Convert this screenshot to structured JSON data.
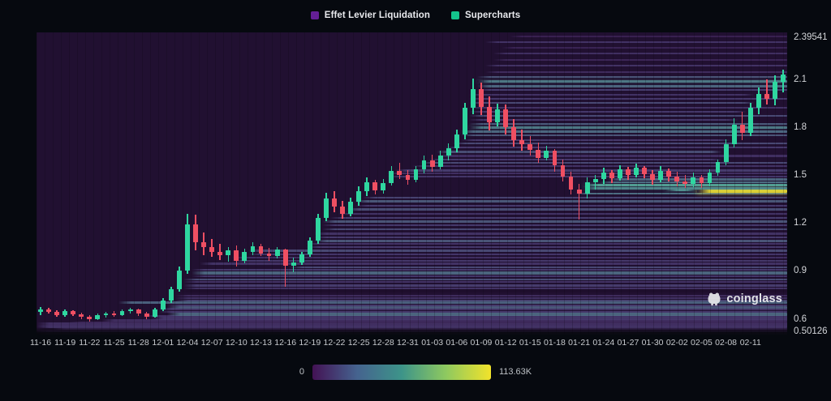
{
  "legend": {
    "items": [
      {
        "label": "Effet Levier Liquidation",
        "color": "#641f96"
      },
      {
        "label": "Supercharts",
        "color": "#14c58c"
      }
    ]
  },
  "watermark": {
    "label": "coinglass"
  },
  "colorbar": {
    "min_label": "0",
    "max_label": "113.63K",
    "gradient": [
      "#431254",
      "#45638f",
      "#3d9489",
      "#8fc95f",
      "#f2e32b"
    ]
  },
  "axes": {
    "price_ticks": [
      {
        "label": "2.39541",
        "value": 2.39541
      },
      {
        "label": "2.1",
        "value": 2.1
      },
      {
        "label": "1.8",
        "value": 1.8
      },
      {
        "label": "1.5",
        "value": 1.5
      },
      {
        "label": "1.2",
        "value": 1.2
      },
      {
        "label": "0.9",
        "value": 0.9
      },
      {
        "label": "0.6",
        "value": 0.6
      },
      {
        "label": "0.50126",
        "value": 0.50126
      }
    ],
    "date_ticks": [
      "11-16",
      "11-19",
      "11-22",
      "11-25",
      "11-28",
      "12-01",
      "12-04",
      "12-07",
      "12-10",
      "12-13",
      "12-16",
      "12-19",
      "12-22",
      "12-25",
      "12-28",
      "12-31",
      "01-03",
      "01-06",
      "01-09",
      "01-12",
      "01-15",
      "01-18",
      "01-21",
      "01-24",
      "01-27",
      "01-30",
      "02-02",
      "02-05",
      "02-08",
      "02-11"
    ]
  },
  "chart_data": {
    "type": "candlestick+heatmap",
    "title": "Effet Levier Liquidation / Supercharts",
    "price_min": 0.50126,
    "price_max": 2.39541,
    "intensity_min": 0,
    "intensity_max": 113630,
    "up_color": "#2fd6a0",
    "down_color": "#ef4f62",
    "candles": [
      [
        "11-16",
        0.645,
        0.675,
        0.625,
        0.66
      ],
      [
        "11-17",
        0.66,
        0.67,
        0.635,
        0.645
      ],
      [
        "11-18",
        0.645,
        0.655,
        0.615,
        0.625
      ],
      [
        "11-19",
        0.625,
        0.66,
        0.615,
        0.65
      ],
      [
        "11-20",
        0.65,
        0.655,
        0.62,
        0.63
      ],
      [
        "11-21",
        0.63,
        0.64,
        0.6,
        0.615
      ],
      [
        "11-22",
        0.615,
        0.625,
        0.585,
        0.6
      ],
      [
        "11-23",
        0.6,
        0.635,
        0.595,
        0.625
      ],
      [
        "11-24",
        0.625,
        0.645,
        0.61,
        0.635
      ],
      [
        "11-25",
        0.635,
        0.65,
        0.615,
        0.625
      ],
      [
        "11-26",
        0.625,
        0.66,
        0.62,
        0.65
      ],
      [
        "11-27",
        0.65,
        0.67,
        0.635,
        0.66
      ],
      [
        "11-28",
        0.66,
        0.665,
        0.62,
        0.635
      ],
      [
        "11-29",
        0.635,
        0.645,
        0.6,
        0.615
      ],
      [
        "11-30",
        0.615,
        0.67,
        0.61,
        0.66
      ],
      [
        "12-01",
        0.66,
        0.73,
        0.65,
        0.715
      ],
      [
        "12-02",
        0.715,
        0.8,
        0.7,
        0.785
      ],
      [
        "12-03",
        0.785,
        0.93,
        0.77,
        0.9
      ],
      [
        "12-04",
        0.9,
        1.26,
        0.88,
        1.19
      ],
      [
        "12-05",
        1.19,
        1.255,
        1.03,
        1.08
      ],
      [
        "12-06",
        1.08,
        1.14,
        1.0,
        1.05
      ],
      [
        "12-07",
        1.05,
        1.1,
        0.99,
        1.02
      ],
      [
        "12-08",
        1.02,
        1.07,
        0.97,
        1.0
      ],
      [
        "12-09",
        1.0,
        1.05,
        0.96,
        1.03
      ],
      [
        "12-10",
        1.03,
        1.06,
        0.93,
        0.965
      ],
      [
        "12-11",
        0.965,
        1.04,
        0.95,
        1.02
      ],
      [
        "12-12",
        1.02,
        1.08,
        1.0,
        1.055
      ],
      [
        "12-13",
        1.055,
        1.07,
        0.995,
        1.01
      ],
      [
        "12-14",
        1.01,
        1.045,
        0.965,
        0.995
      ],
      [
        "12-15",
        0.995,
        1.05,
        0.98,
        1.035
      ],
      [
        "12-16",
        1.035,
        1.04,
        0.8,
        0.935
      ],
      [
        "12-17",
        0.935,
        0.985,
        0.89,
        0.955
      ],
      [
        "12-18",
        0.955,
        1.02,
        0.94,
        1.005
      ],
      [
        "12-19",
        1.005,
        1.11,
        0.99,
        1.09
      ],
      [
        "12-20",
        1.09,
        1.26,
        1.07,
        1.23
      ],
      [
        "12-21",
        1.23,
        1.39,
        1.21,
        1.355
      ],
      [
        "12-22",
        1.355,
        1.4,
        1.27,
        1.305
      ],
      [
        "12-23",
        1.305,
        1.34,
        1.225,
        1.26
      ],
      [
        "12-24",
        1.26,
        1.36,
        1.245,
        1.335
      ],
      [
        "12-25",
        1.335,
        1.43,
        1.31,
        1.4
      ],
      [
        "12-26",
        1.4,
        1.485,
        1.37,
        1.455
      ],
      [
        "12-27",
        1.455,
        1.47,
        1.38,
        1.405
      ],
      [
        "12-28",
        1.405,
        1.475,
        1.385,
        1.45
      ],
      [
        "12-29",
        1.45,
        1.555,
        1.435,
        1.525
      ],
      [
        "12-30",
        1.525,
        1.58,
        1.475,
        1.5
      ],
      [
        "12-31",
        1.5,
        1.53,
        1.44,
        1.47
      ],
      [
        "01-01",
        1.47,
        1.555,
        1.455,
        1.535
      ],
      [
        "01-02",
        1.535,
        1.625,
        1.51,
        1.595
      ],
      [
        "01-03",
        1.595,
        1.63,
        1.52,
        1.55
      ],
      [
        "01-04",
        1.55,
        1.655,
        1.535,
        1.625
      ],
      [
        "01-05",
        1.625,
        1.7,
        1.595,
        1.67
      ],
      [
        "01-06",
        1.67,
        1.785,
        1.645,
        1.755
      ],
      [
        "01-07",
        1.755,
        1.955,
        1.725,
        1.925
      ],
      [
        "01-08",
        1.925,
        2.105,
        1.885,
        2.04
      ],
      [
        "01-09",
        2.04,
        2.08,
        1.875,
        1.93
      ],
      [
        "01-10",
        1.93,
        1.995,
        1.78,
        1.83
      ],
      [
        "01-11",
        1.83,
        1.95,
        1.805,
        1.915
      ],
      [
        "01-12",
        1.915,
        1.945,
        1.755,
        1.8
      ],
      [
        "01-13",
        1.8,
        1.85,
        1.68,
        1.72
      ],
      [
        "01-14",
        1.72,
        1.785,
        1.655,
        1.695
      ],
      [
        "01-15",
        1.695,
        1.745,
        1.625,
        1.66
      ],
      [
        "01-16",
        1.66,
        1.705,
        1.58,
        1.61
      ],
      [
        "01-17",
        1.61,
        1.685,
        1.595,
        1.655
      ],
      [
        "01-18",
        1.655,
        1.665,
        1.52,
        1.565
      ],
      [
        "01-19",
        1.565,
        1.6,
        1.46,
        1.49
      ],
      [
        "01-20",
        1.49,
        1.52,
        1.38,
        1.41
      ],
      [
        "01-21",
        1.41,
        1.445,
        1.22,
        1.385
      ],
      [
        "01-22",
        1.385,
        1.485,
        1.355,
        1.455
      ],
      [
        "01-23",
        1.455,
        1.5,
        1.41,
        1.475
      ],
      [
        "01-24",
        1.475,
        1.545,
        1.445,
        1.515
      ],
      [
        "01-25",
        1.515,
        1.53,
        1.45,
        1.48
      ],
      [
        "01-26",
        1.48,
        1.565,
        1.465,
        1.535
      ],
      [
        "01-27",
        1.535,
        1.55,
        1.47,
        1.5
      ],
      [
        "01-28",
        1.5,
        1.575,
        1.485,
        1.545
      ],
      [
        "01-29",
        1.545,
        1.56,
        1.48,
        1.505
      ],
      [
        "01-30",
        1.505,
        1.53,
        1.44,
        1.47
      ],
      [
        "01-31",
        1.47,
        1.555,
        1.455,
        1.525
      ],
      [
        "02-01",
        1.525,
        1.54,
        1.46,
        1.49
      ],
      [
        "02-02",
        1.49,
        1.52,
        1.43,
        1.46
      ],
      [
        "02-03",
        1.46,
        1.5,
        1.42,
        1.445
      ],
      [
        "02-04",
        1.445,
        1.515,
        1.425,
        1.485
      ],
      [
        "02-05",
        1.485,
        1.5,
        1.42,
        1.45
      ],
      [
        "02-06",
        1.45,
        1.535,
        1.43,
        1.515
      ],
      [
        "02-07",
        1.515,
        1.6,
        1.495,
        1.585
      ],
      [
        "02-08",
        1.585,
        1.725,
        1.565,
        1.695
      ],
      [
        "02-09",
        1.695,
        1.855,
        1.675,
        1.815
      ],
      [
        "02-10",
        1.815,
        1.9,
        1.72,
        1.765
      ],
      [
        "02-11",
        1.765,
        1.955,
        1.745,
        1.925
      ],
      [
        "02-12",
        1.925,
        2.05,
        1.885,
        2.01
      ],
      [
        "02-13",
        2.01,
        2.1,
        1.945,
        1.98
      ],
      [
        "02-14",
        1.98,
        2.125,
        1.94,
        2.085
      ],
      [
        "02-15",
        2.085,
        2.16,
        2.02,
        2.13
      ]
    ],
    "bands": [
      [
        0.505,
        0,
        null,
        0.22,
        3
      ],
      [
        0.52,
        0,
        null,
        0.15,
        2
      ],
      [
        0.535,
        2,
        null,
        0.2,
        2
      ],
      [
        0.55,
        0,
        null,
        0.3,
        3
      ],
      [
        0.565,
        0,
        null,
        0.28,
        5
      ],
      [
        0.578,
        4,
        null,
        0.22,
        2
      ],
      [
        0.59,
        8,
        null,
        0.26,
        3
      ],
      [
        0.603,
        14,
        null,
        0.32,
        5
      ],
      [
        0.617,
        13,
        null,
        0.28,
        2
      ],
      [
        0.63,
        16,
        null,
        0.5,
        4
      ],
      [
        0.645,
        15,
        null,
        0.35,
        2
      ],
      [
        0.66,
        15,
        null,
        0.3,
        3
      ],
      [
        0.672,
        16,
        null,
        0.45,
        3
      ],
      [
        0.685,
        16,
        null,
        0.35,
        2
      ],
      [
        0.7,
        10,
        null,
        0.48,
        3
      ],
      [
        0.715,
        17,
        null,
        0.38,
        2
      ],
      [
        0.73,
        17,
        null,
        0.3,
        2
      ],
      [
        0.745,
        17,
        null,
        0.25,
        2
      ],
      [
        0.775,
        17,
        null,
        0.03,
        4
      ],
      [
        0.79,
        18,
        null,
        0.3,
        2
      ],
      [
        0.81,
        18,
        null,
        0.36,
        3
      ],
      [
        0.83,
        18,
        null,
        0.3,
        2
      ],
      [
        0.845,
        18,
        null,
        0.42,
        2
      ],
      [
        0.865,
        19,
        null,
        0.32,
        2
      ],
      [
        0.885,
        19,
        null,
        0.5,
        4
      ],
      [
        0.905,
        19,
        null,
        0.34,
        2
      ],
      [
        0.925,
        31,
        null,
        0.4,
        2
      ],
      [
        0.945,
        20,
        null,
        0.3,
        3
      ],
      [
        0.965,
        24,
        null,
        0.34,
        2
      ],
      [
        0.985,
        24,
        null,
        0.28,
        2
      ],
      [
        1.005,
        26,
        null,
        0.32,
        2
      ],
      [
        1.025,
        26,
        null,
        0.4,
        3
      ],
      [
        1.05,
        33,
        null,
        0.34,
        2
      ],
      [
        1.07,
        33,
        null,
        0.3,
        2
      ],
      [
        1.09,
        34,
        null,
        0.44,
        3
      ],
      [
        1.11,
        34,
        null,
        0.35,
        2
      ],
      [
        1.135,
        34,
        null,
        0.3,
        3
      ],
      [
        1.16,
        35,
        null,
        0.4,
        2
      ],
      [
        1.185,
        35,
        null,
        0.34,
        2
      ],
      [
        1.21,
        35,
        null,
        0.44,
        3
      ],
      [
        1.235,
        36,
        null,
        0.36,
        2
      ],
      [
        1.26,
        37,
        null,
        0.3,
        2
      ],
      [
        1.285,
        38,
        null,
        0.42,
        3
      ],
      [
        1.31,
        39,
        null,
        0.34,
        2
      ],
      [
        1.335,
        39,
        null,
        0.45,
        3
      ],
      [
        1.36,
        40,
        null,
        0.38,
        2
      ],
      [
        1.385,
        66,
        null,
        0.52,
        2
      ],
      [
        1.402,
        81,
        null,
        1.0,
        4
      ],
      [
        1.408,
        77,
        81,
        0.6,
        3
      ],
      [
        1.42,
        67,
        null,
        0.58,
        3
      ],
      [
        1.44,
        67,
        null,
        0.65,
        3
      ],
      [
        1.458,
        69,
        null,
        0.52,
        2
      ],
      [
        1.475,
        70,
        null,
        0.5,
        3
      ],
      [
        1.492,
        43,
        null,
        0.32,
        2
      ],
      [
        1.51,
        43,
        null,
        0.28,
        2
      ],
      [
        1.53,
        44,
        null,
        0.36,
        3
      ],
      [
        1.555,
        46,
        null,
        0.3,
        2
      ],
      [
        1.578,
        47,
        null,
        0.4,
        2
      ],
      [
        1.6,
        48,
        84,
        0.34,
        2
      ],
      [
        1.623,
        49,
        null,
        0.28,
        3
      ],
      [
        1.648,
        49,
        84,
        0.42,
        3
      ],
      [
        1.672,
        50,
        null,
        0.34,
        2
      ],
      [
        1.698,
        51,
        null,
        0.4,
        2
      ],
      [
        1.722,
        52,
        85,
        0.34,
        2
      ],
      [
        1.748,
        52,
        null,
        0.44,
        2
      ],
      [
        1.772,
        52,
        null,
        0.5,
        3
      ],
      [
        1.798,
        53,
        null,
        0.55,
        3
      ],
      [
        1.822,
        53,
        null,
        0.46,
        2
      ],
      [
        1.848,
        53,
        86,
        0.34,
        2
      ],
      [
        1.872,
        53,
        null,
        0.4,
        2
      ],
      [
        1.9,
        53,
        87,
        0.34,
        2
      ],
      [
        1.925,
        53,
        null,
        0.3,
        2
      ],
      [
        1.952,
        53,
        88,
        0.4,
        2
      ],
      [
        1.978,
        53,
        null,
        0.34,
        2
      ],
      [
        2.005,
        53,
        88,
        0.3,
        2
      ],
      [
        2.035,
        54,
        null,
        0.36,
        2
      ],
      [
        2.06,
        54,
        null,
        0.5,
        3
      ],
      [
        2.088,
        54,
        null,
        0.55,
        3
      ],
      [
        2.115,
        54,
        null,
        0.44,
        2
      ],
      [
        2.148,
        55,
        null,
        0.25,
        2
      ],
      [
        2.185,
        55,
        null,
        0.3,
        2
      ],
      [
        2.225,
        56,
        null,
        0.22,
        2
      ],
      [
        2.262,
        56,
        null,
        0.28,
        2
      ],
      [
        2.3,
        57,
        null,
        0.2,
        2
      ],
      [
        2.335,
        55,
        null,
        0.3,
        2
      ],
      [
        2.368,
        58,
        null,
        0.18,
        2
      ]
    ]
  }
}
